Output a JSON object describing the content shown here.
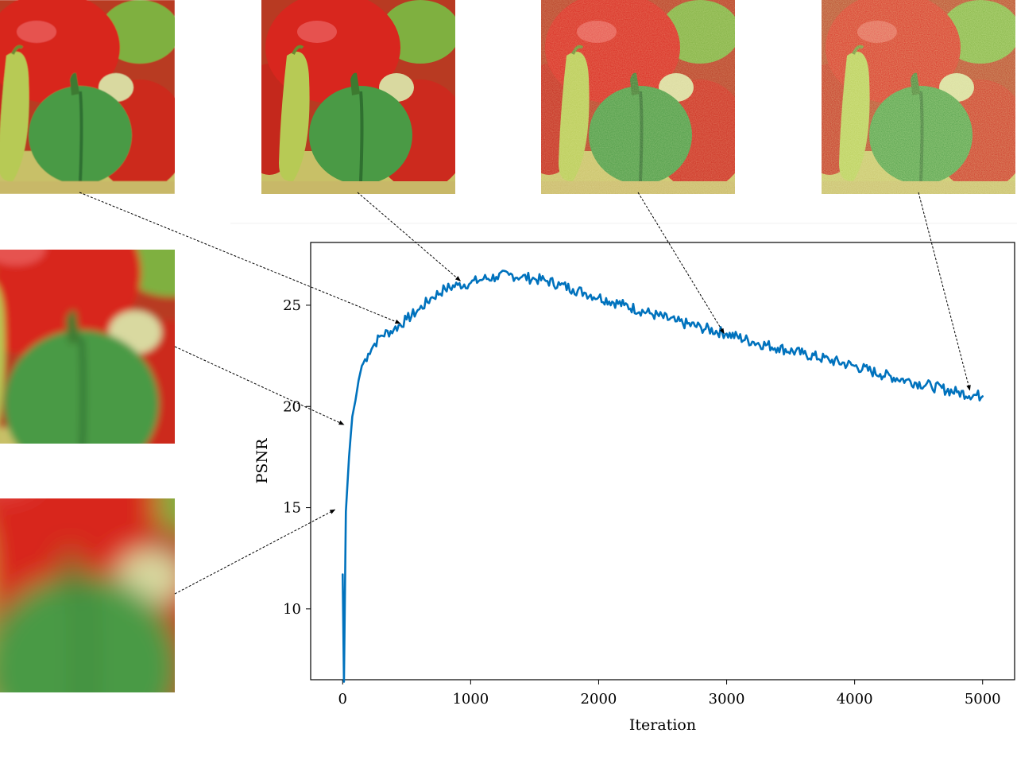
{
  "chart_data": {
    "type": "line",
    "title": "",
    "xlabel": "Iteration",
    "ylabel": "PSNR",
    "xlim": [
      -250,
      5250
    ],
    "ylim": [
      6.5,
      28.1
    ],
    "xticks": [
      0,
      1000,
      2000,
      3000,
      4000,
      5000
    ],
    "yticks": [
      10,
      15,
      20,
      25
    ],
    "grid": false,
    "legend": "none",
    "series": [
      {
        "color": "#0072BD",
        "x": [
          0,
          10,
          25,
          50,
          75,
          100,
          125,
          150,
          200,
          250,
          300,
          400,
          500,
          600,
          700,
          800,
          900,
          1000,
          1100,
          1200,
          1300,
          1400,
          1500,
          1600,
          1700,
          1800,
          1900,
          2000,
          2200,
          2400,
          2600,
          2800,
          3000,
          3200,
          3400,
          3600,
          3800,
          4000,
          4200,
          4400,
          4600,
          4800,
          5000
        ],
        "y": [
          11.7,
          6.4,
          14.8,
          17.5,
          19.5,
          20.3,
          21.3,
          22.0,
          22.6,
          23.1,
          23.5,
          23.8,
          24.3,
          24.8,
          25.4,
          25.8,
          26.0,
          26.1,
          26.3,
          26.4,
          26.5,
          26.4,
          26.3,
          26.2,
          26.0,
          25.8,
          25.6,
          25.4,
          25.0,
          24.6,
          24.2,
          23.9,
          23.6,
          23.2,
          22.9,
          22.6,
          22.3,
          22.0,
          21.6,
          21.3,
          21.0,
          20.7,
          20.5
        ]
      }
    ],
    "annotations": [
      {
        "from": "thumb-top-1",
        "x": 450,
        "y": 24.1
      },
      {
        "from": "thumb-top-2",
        "x": 920,
        "y": 26.2
      },
      {
        "from": "thumb-top-3",
        "x": 2980,
        "y": 23.6
      },
      {
        "from": "thumb-top-4",
        "x": 4900,
        "y": 20.8
      },
      {
        "from": "thumb-left-2",
        "x": 10,
        "y": 19.1
      },
      {
        "from": "thumb-left-3",
        "x": -60,
        "y": 14.9
      }
    ],
    "thumbnails": [
      {
        "id": "thumb-top-1",
        "blur": 0.2,
        "noise": 0
      },
      {
        "id": "thumb-top-2",
        "blur": 0,
        "noise": 0
      },
      {
        "id": "thumb-top-3",
        "blur": 0,
        "noise": 0.45
      },
      {
        "id": "thumb-top-4",
        "blur": 0,
        "noise": 0.8
      },
      {
        "id": "thumb-left-2",
        "blur": 3,
        "noise": 0
      },
      {
        "id": "thumb-left-3",
        "blur": 7,
        "noise": 0
      }
    ]
  }
}
